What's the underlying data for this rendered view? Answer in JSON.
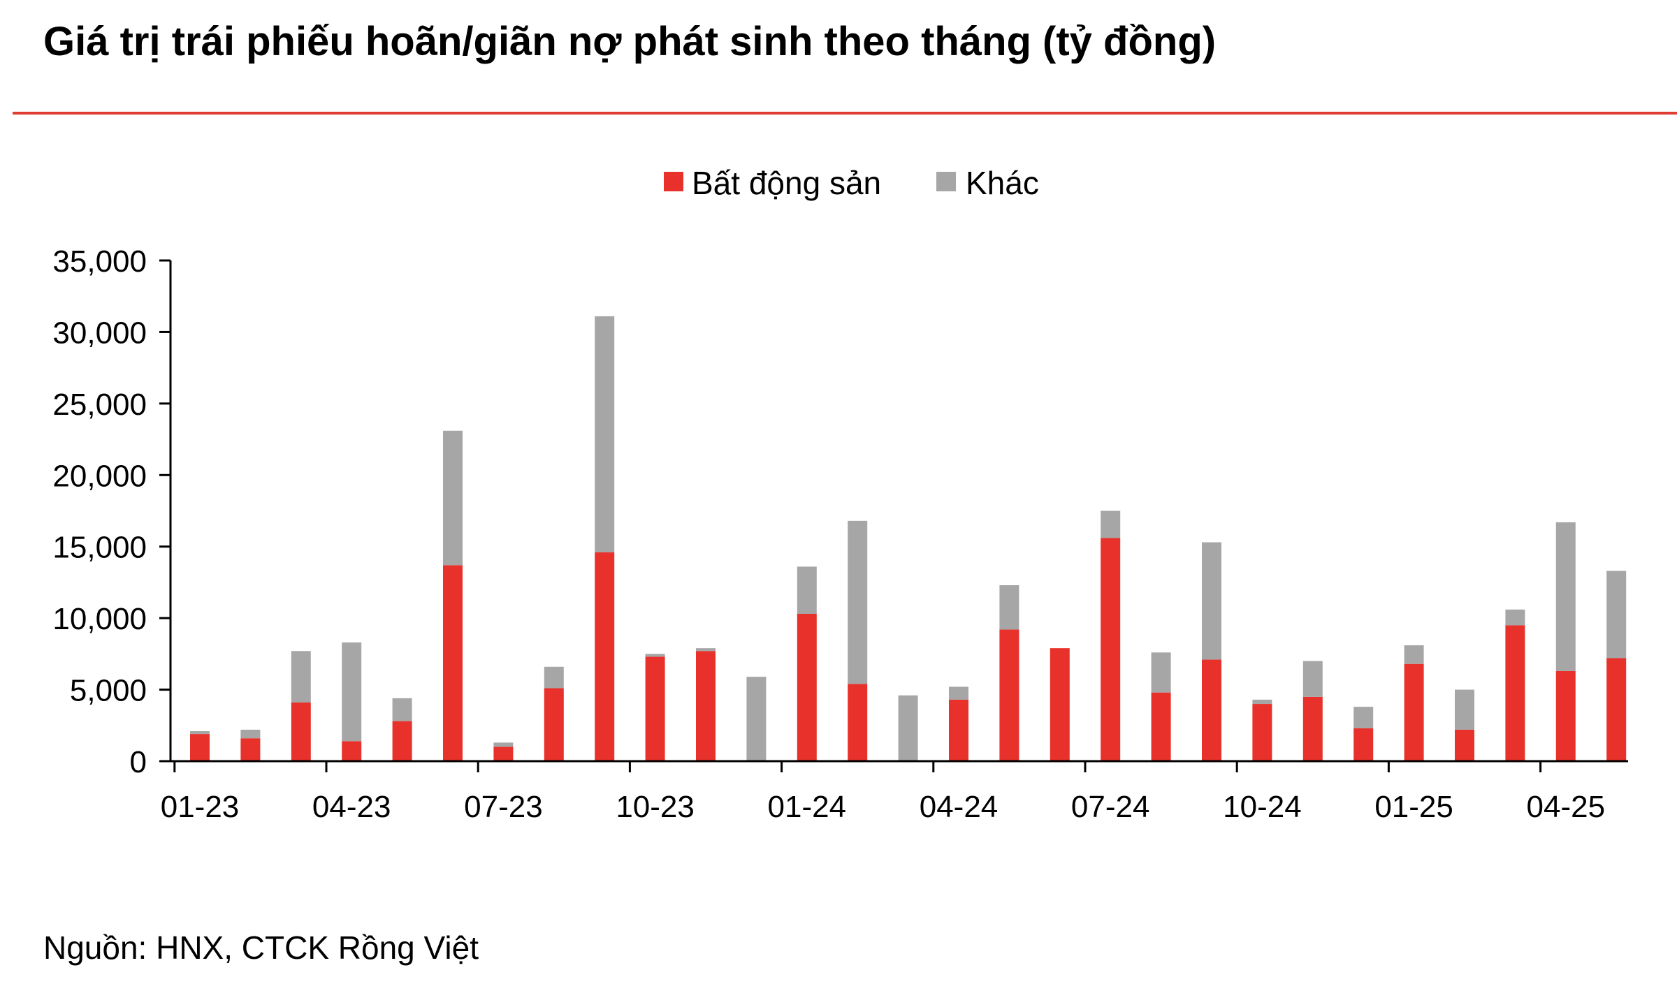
{
  "title": "Giá trị trái phiếu hoãn/giãn nợ phát sinh theo tháng (tỷ đồng)",
  "source": "Nguồn: HNX, CTCK Rồng Việt",
  "colors": {
    "rule": "#e03c31",
    "real_estate": "#e8312a",
    "other": "#a6a6a6"
  },
  "chart_data": {
    "type": "bar",
    "stacked": true,
    "categories": [
      "01-23",
      "02-23",
      "03-23",
      "04-23",
      "05-23",
      "06-23",
      "07-23",
      "08-23",
      "09-23",
      "10-23",
      "11-23",
      "12-23",
      "01-24",
      "02-24",
      "03-24",
      "04-24",
      "05-24",
      "06-24",
      "07-24",
      "08-24",
      "09-24",
      "10-24",
      "11-24",
      "12-24",
      "01-25",
      "02-25",
      "03-25",
      "04-25",
      "05-25"
    ],
    "tick_labels": [
      "01-23",
      "04-23",
      "07-23",
      "10-23",
      "01-24",
      "04-24",
      "07-24",
      "10-24",
      "01-25",
      "04-25"
    ],
    "series": [
      {
        "name": "Bất động sản",
        "color": "#e8312a",
        "values": [
          1900,
          1600,
          4100,
          1400,
          2800,
          13700,
          1000,
          5100,
          14600,
          7300,
          7700,
          0,
          10300,
          5400,
          0,
          4300,
          9200,
          7900,
          15600,
          4800,
          7100,
          4000,
          4500,
          2300,
          6800,
          2200,
          9500,
          6300,
          7200
        ]
      },
      {
        "name": "Khác",
        "color": "#a6a6a6",
        "values": [
          200,
          600,
          3600,
          6900,
          1600,
          9400,
          300,
          1500,
          16500,
          200,
          200,
          5900,
          3300,
          11400,
          4600,
          900,
          3100,
          0,
          1900,
          2800,
          8200,
          300,
          2500,
          1500,
          1300,
          2800,
          1100,
          10400,
          6100
        ]
      }
    ],
    "yticks": [
      0,
      5000,
      10000,
      15000,
      20000,
      25000,
      30000,
      35000
    ],
    "ytick_labels": [
      "0",
      "5,000",
      "10,000",
      "15,000",
      "20,000",
      "25,000",
      "30,000",
      "35,000"
    ],
    "ylim": [
      0,
      35000
    ],
    "legend_position": "top-center",
    "grid": false
  }
}
